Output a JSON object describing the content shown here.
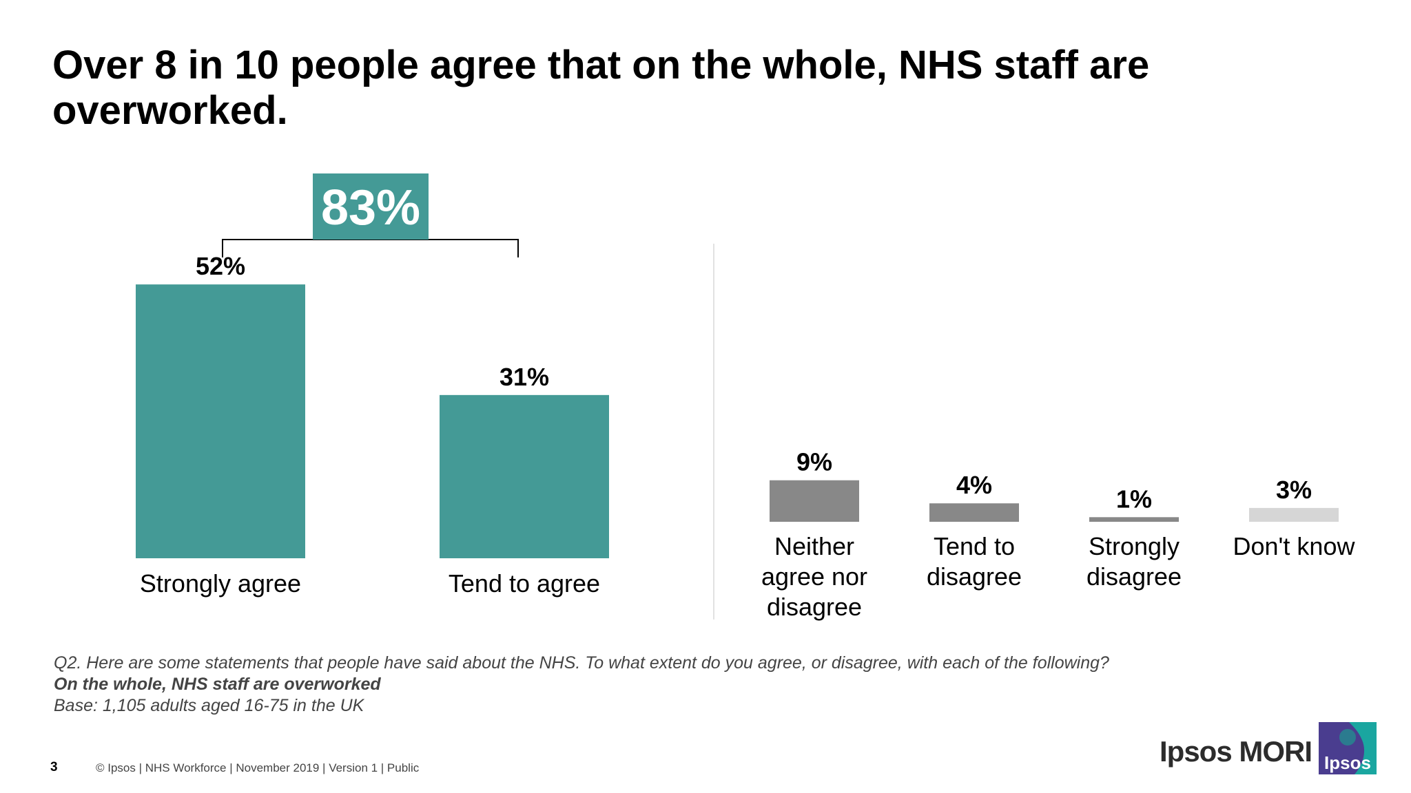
{
  "title": "Over 8 in 10 people agree that on the whole, NHS staff are overworked.",
  "chart_data": {
    "type": "bar",
    "categories": [
      "Strongly agree",
      "Tend to agree",
      "Neither agree nor disagree",
      "Tend to disagree",
      "Strongly disagree",
      "Don't know"
    ],
    "values": [
      52,
      31,
      9,
      4,
      1,
      3
    ],
    "value_labels": [
      "52%",
      "31%",
      "9%",
      "4%",
      "1%",
      "3%"
    ],
    "bar_colors": [
      "#449a96",
      "#449a96",
      "#888888",
      "#888888",
      "#888888",
      "#d6d6d6"
    ],
    "total_agree": "83%",
    "total_agree_color": "#449a96"
  },
  "footnote": {
    "question": "Q2. Here are some statements that people have said about the NHS. To what extent do you agree, or disagree, with each of the following?",
    "statement": "On the whole, NHS staff are overworked",
    "base": "Base: 1,105 adults aged 16-75 in the UK"
  },
  "footer": {
    "page_number": "3",
    "text": "© Ipsos | NHS Workforce | November 2019 | Version 1 | Public"
  },
  "brand": {
    "name": "Ipsos MORI",
    "logo_text": "Ipsos",
    "logo_colors": [
      "#4a3d8f",
      "#1aa6a0"
    ]
  }
}
